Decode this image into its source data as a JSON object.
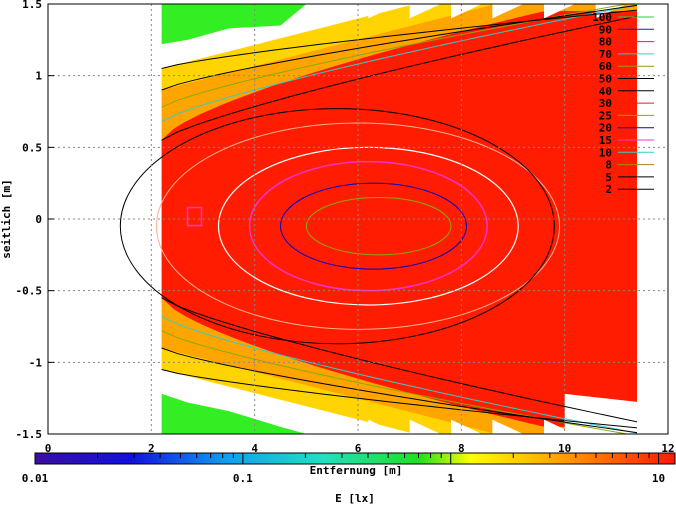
{
  "chart_data": {
    "type": "heatmap",
    "title": "",
    "xlabel": "Entfernung [m]",
    "ylabel": "seitlich [m]",
    "xlim": [
      0,
      12
    ],
    "ylim": [
      -1.5,
      1.5
    ],
    "x_ticks": [
      "0",
      "2",
      "4",
      "6",
      "8",
      "10",
      "12"
    ],
    "y_ticks": [
      "-1.5",
      "-1",
      "-0.5",
      "0",
      "0.5",
      "1",
      "1.5"
    ],
    "grid": true,
    "legend_position": "top-right",
    "contour_levels": [
      {
        "label": "100",
        "color": "#2ecc40"
      },
      {
        "label": "90",
        "color": "#1b1bb4"
      },
      {
        "label": "80",
        "color": "#ff00aa"
      },
      {
        "label": "70",
        "color": "#33cccc"
      },
      {
        "label": "60",
        "color": "#999900"
      },
      {
        "label": "50",
        "color": "#000000"
      },
      {
        "label": "40",
        "color": "#000000"
      },
      {
        "label": "30",
        "color": "#dd2222"
      },
      {
        "label": "25",
        "color": "#88aa00"
      },
      {
        "label": "20",
        "color": "#0000cc"
      },
      {
        "label": "15",
        "color": "#ff33cc"
      },
      {
        "label": "10",
        "color": "#33cccc"
      },
      {
        "label": "8",
        "color": "#aa8800"
      },
      {
        "label": "5",
        "color": "#000000"
      },
      {
        "label": "2",
        "color": "#000000"
      }
    ],
    "colorbar": {
      "label": "E [lx]",
      "scale": "log",
      "range": [
        0.01,
        12
      ],
      "ticks": [
        "0.01",
        "0.1",
        "1",
        "10"
      ]
    },
    "field": {
      "x_start": 2.2,
      "x_end": 11.4,
      "core_illuminance_lx": 12,
      "edge_illuminance_lx": 2,
      "fringe_illuminance_lx": 0.8
    }
  }
}
